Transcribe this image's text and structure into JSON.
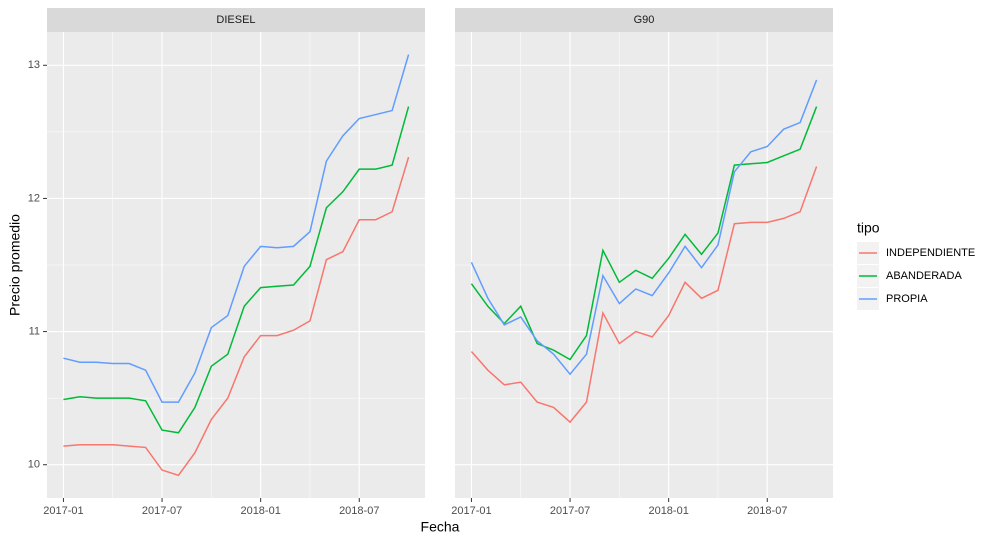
{
  "chart_data": [
    {
      "type": "line",
      "title": "DIESEL",
      "y_label": "Precio promedio",
      "x_label": "Fecha",
      "x": [
        "2017-01",
        "2017-02",
        "2017-03",
        "2017-04",
        "2017-05",
        "2017-06",
        "2017-07",
        "2017-08",
        "2017-09",
        "2017-10",
        "2017-11",
        "2017-12",
        "2018-01",
        "2018-02",
        "2018-03",
        "2018-04",
        "2018-05",
        "2018-06",
        "2018-07",
        "2018-08",
        "2018-09",
        "2018-10"
      ],
      "xlim": [
        "2016-12",
        "2018-11"
      ],
      "xticks": [
        "2017-01",
        "2017-07",
        "2018-01",
        "2018-07"
      ],
      "ylim": [
        9.75,
        13.25
      ],
      "yticks": [
        10,
        11,
        12,
        13
      ],
      "grid": true,
      "series": [
        {
          "name": "INDEPENDIENTE",
          "color": "#F8766D",
          "values": [
            10.14,
            10.15,
            10.15,
            10.15,
            10.14,
            10.13,
            9.96,
            9.92,
            10.09,
            10.34,
            10.5,
            10.81,
            10.97,
            10.97,
            11.01,
            11.08,
            11.54,
            11.6,
            11.84,
            11.84,
            11.9,
            12.31
          ]
        },
        {
          "name": "ABANDERADA",
          "color": "#00BA38",
          "values": [
            10.49,
            10.51,
            10.5,
            10.5,
            10.5,
            10.48,
            10.26,
            10.24,
            10.43,
            10.74,
            10.83,
            11.19,
            11.33,
            11.34,
            11.35,
            11.49,
            11.93,
            12.05,
            12.22,
            12.22,
            12.25,
            12.69
          ]
        },
        {
          "name": "PROPIA",
          "color": "#619CFF",
          "values": [
            10.8,
            10.77,
            10.77,
            10.76,
            10.76,
            10.71,
            10.47,
            10.47,
            10.69,
            11.03,
            11.12,
            11.49,
            11.64,
            11.63,
            11.64,
            11.75,
            12.28,
            12.47,
            12.6,
            12.63,
            12.66,
            13.08
          ]
        }
      ]
    },
    {
      "type": "line",
      "title": "G90",
      "legend_title": "tipo",
      "legend": "right",
      "x": [
        "2017-01",
        "2017-02",
        "2017-03",
        "2017-04",
        "2017-05",
        "2017-06",
        "2017-07",
        "2017-08",
        "2017-09",
        "2017-10",
        "2017-11",
        "2017-12",
        "2018-01",
        "2018-02",
        "2018-03",
        "2018-04",
        "2018-05",
        "2018-06",
        "2018-07",
        "2018-08",
        "2018-09",
        "2018-10"
      ],
      "xlim": [
        "2016-12",
        "2018-11"
      ],
      "xticks": [
        "2017-01",
        "2017-07",
        "2018-01",
        "2018-07"
      ],
      "ylim": [
        9.75,
        13.25
      ],
      "yticks": [
        10,
        11,
        12,
        13
      ],
      "grid": true,
      "series": [
        {
          "name": "INDEPENDIENTE",
          "color": "#F8766D",
          "values": [
            10.85,
            10.71,
            10.6,
            10.62,
            10.47,
            10.43,
            10.32,
            10.47,
            11.14,
            10.91,
            11.0,
            10.96,
            11.12,
            11.37,
            11.25,
            11.31,
            11.81,
            11.82,
            11.82,
            11.85,
            11.9,
            12.24
          ]
        },
        {
          "name": "ABANDERADA",
          "color": "#00BA38",
          "values": [
            11.36,
            11.19,
            11.06,
            11.19,
            10.91,
            10.86,
            10.79,
            10.97,
            11.61,
            11.37,
            11.46,
            11.4,
            11.55,
            11.73,
            11.58,
            11.74,
            12.25,
            12.26,
            12.27,
            12.32,
            12.37,
            12.69
          ]
        },
        {
          "name": "PROPIA",
          "color": "#619CFF",
          "values": [
            11.52,
            11.25,
            11.05,
            11.11,
            10.93,
            10.83,
            10.68,
            10.83,
            11.42,
            11.21,
            11.32,
            11.27,
            11.44,
            11.64,
            11.48,
            11.65,
            12.2,
            12.35,
            12.39,
            12.52,
            12.57,
            12.89
          ]
        }
      ]
    }
  ]
}
